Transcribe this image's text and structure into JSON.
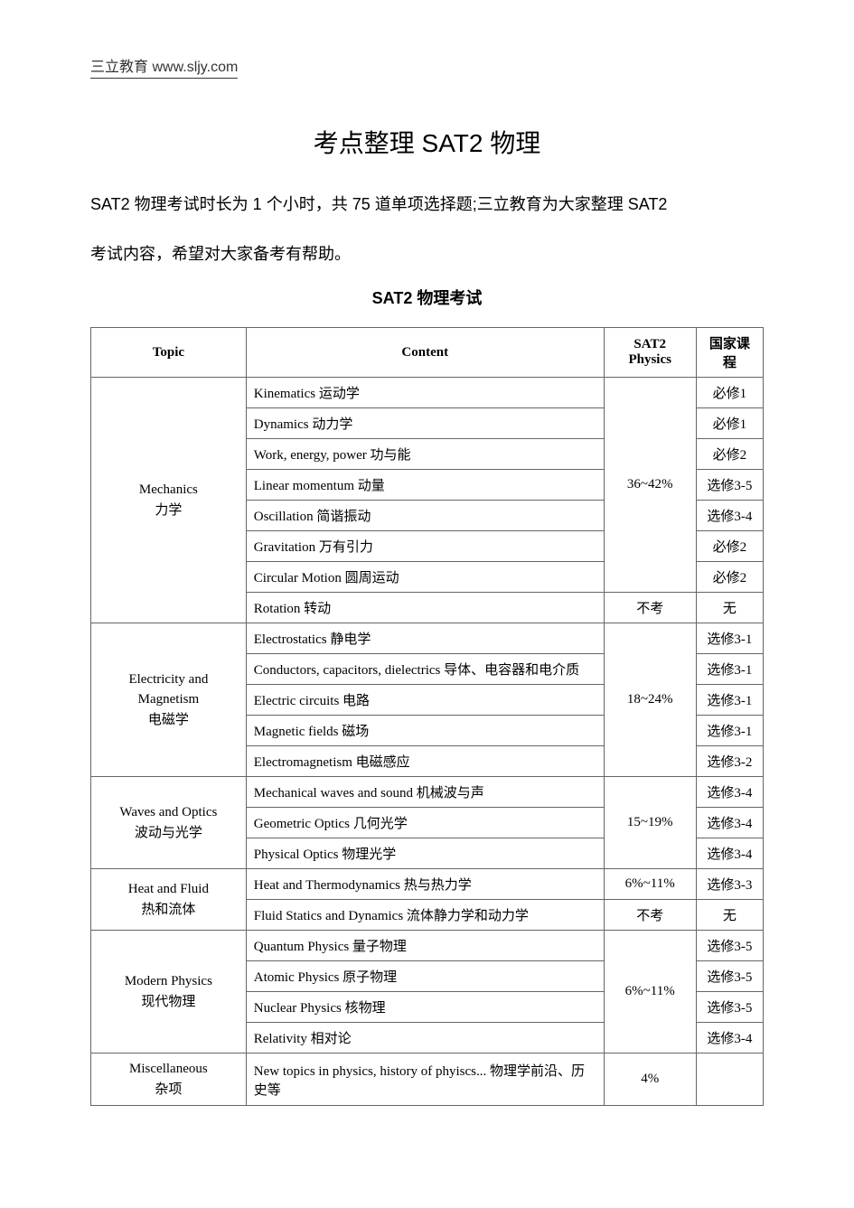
{
  "header": {
    "brand": "三立教育",
    "url": "www.sljy.com"
  },
  "title": "考点整理 SAT2 物理",
  "intro_p1": "SAT2 物理考试时长为 1 个小时，共 75 道单项选择题;三立教育为大家整理 SAT2",
  "intro_p2": "考试内容，希望对大家备考有帮助。",
  "subtitle": "SAT2 物理考试",
  "table": {
    "headers": {
      "topic": "Topic",
      "content": "Content",
      "sat2": "SAT2 Physics",
      "national": "国家课程"
    },
    "sections": [
      {
        "topic_en": "Mechanics",
        "topic_cn": "力学",
        "rows": [
          {
            "content": "Kinematics 运动学",
            "sat2": "36~42%",
            "sat2_span": 7,
            "national": "必修1"
          },
          {
            "content": "Dynamics 动力学",
            "national": "必修1"
          },
          {
            "content": "Work, energy, power 功与能",
            "national": "必修2"
          },
          {
            "content": "Linear momentum 动量",
            "national": "选修3-5"
          },
          {
            "content": "Oscillation 简谐振动",
            "national": "选修3-4"
          },
          {
            "content": "Gravitation 万有引力",
            "national": "必修2"
          },
          {
            "content": "Circular Motion 圆周运动",
            "national": "必修2"
          },
          {
            "content": "Rotation 转动",
            "sat2": "不考",
            "sat2_span": 1,
            "national": "无"
          }
        ]
      },
      {
        "topic_en": "Electricity and Magnetism",
        "topic_cn": "电磁学",
        "rows": [
          {
            "content": "Electrostatics 静电学",
            "sat2": "18~24%",
            "sat2_span": 5,
            "national": "选修3-1"
          },
          {
            "content": "Conductors, capacitors, dielectrics 导体、电容器和电介质",
            "national": "选修3-1"
          },
          {
            "content": "Electric circuits 电路",
            "national": "选修3-1"
          },
          {
            "content": "Magnetic fields 磁场",
            "national": "选修3-1"
          },
          {
            "content": "Electromagnetism 电磁感应",
            "national": "选修3-2"
          }
        ]
      },
      {
        "topic_en": "Waves and Optics",
        "topic_cn": "波动与光学",
        "rows": [
          {
            "content": "Mechanical waves and sound 机械波与声",
            "sat2": "15~19%",
            "sat2_span": 3,
            "national": "选修3-4"
          },
          {
            "content": "Geometric Optics 几何光学",
            "national": "选修3-4"
          },
          {
            "content": "Physical Optics 物理光学",
            "national": "选修3-4"
          }
        ]
      },
      {
        "topic_en": "Heat and Fluid",
        "topic_cn": "热和流体",
        "rows": [
          {
            "content": "Heat and Thermodynamics 热与热力学",
            "sat2": "6%~11%",
            "sat2_span": 1,
            "national": "选修3-3"
          },
          {
            "content": "Fluid Statics and Dynamics 流体静力学和动力学",
            "sat2": "不考",
            "sat2_span": 1,
            "national": "无"
          }
        ]
      },
      {
        "topic_en": "Modern Physics",
        "topic_cn": "现代物理",
        "rows": [
          {
            "content": "Quantum Physics 量子物理",
            "sat2": "6%~11%",
            "sat2_span": 4,
            "national": "选修3-5"
          },
          {
            "content": "Atomic Physics 原子物理",
            "national": "选修3-5"
          },
          {
            "content": "Nuclear Physics 核物理",
            "national": "选修3-5"
          },
          {
            "content": "Relativity 相对论",
            "national": "选修3-4"
          }
        ]
      },
      {
        "topic_en": "Miscellaneous",
        "topic_cn": "杂项",
        "rows": [
          {
            "content": "New topics in physics, history of phyiscs... 物理学前沿、历史等",
            "sat2": "4%",
            "sat2_span": 1,
            "national": ""
          }
        ]
      }
    ]
  }
}
